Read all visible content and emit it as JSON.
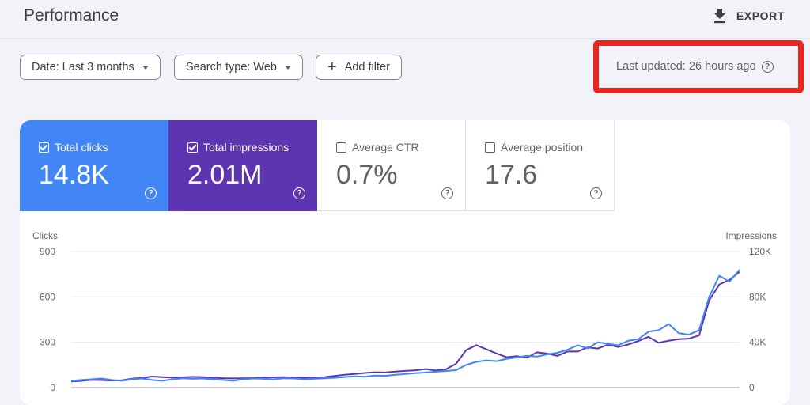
{
  "header": {
    "title": "Performance",
    "export_label": "EXPORT"
  },
  "filters": {
    "date": "Date: Last 3 months",
    "search_type": "Search type: Web",
    "add_filter": "Add filter"
  },
  "status": {
    "last_updated": "Last updated: 26 hours ago"
  },
  "metrics": {
    "clicks": {
      "label": "Total clicks",
      "value": "14.8K",
      "checked": true
    },
    "impressions": {
      "label": "Total impressions",
      "value": "2.01M",
      "checked": true
    },
    "ctr": {
      "label": "Average CTR",
      "value": "0.7%",
      "checked": false
    },
    "position": {
      "label": "Average position",
      "value": "17.6",
      "checked": false
    }
  },
  "colors": {
    "clicks": "#4285f4",
    "impressions": "#5e35b1",
    "highlight": "#e8261c"
  },
  "chart_data": {
    "type": "line",
    "left_axis_label": "Clicks",
    "right_axis_label": "Impressions",
    "left_ticks": [
      "900",
      "600",
      "300",
      "0"
    ],
    "right_ticks": [
      "120K",
      "80K",
      "40K",
      "0"
    ],
    "left_range": [
      0,
      900
    ],
    "right_range": [
      0,
      120000
    ],
    "grid": true,
    "series": [
      {
        "name": "Total clicks",
        "axis": "left",
        "color": "#4285f4",
        "values": [
          45,
          50,
          55,
          60,
          50,
          45,
          55,
          60,
          50,
          45,
          55,
          62,
          58,
          60,
          55,
          50,
          45,
          55,
          60,
          58,
          55,
          62,
          60,
          55,
          58,
          62,
          65,
          70,
          75,
          72,
          80,
          78,
          85,
          90,
          95,
          100,
          105,
          110,
          115,
          150,
          170,
          180,
          175,
          190,
          200,
          210,
          205,
          220,
          230,
          250,
          280,
          260,
          300,
          290,
          280,
          310,
          320,
          370,
          380,
          420,
          360,
          350,
          380,
          600,
          740,
          700,
          780
        ]
      },
      {
        "name": "Total impressions",
        "axis": "right",
        "color": "#5e35b1",
        "values": [
          5400,
          5900,
          6800,
          6600,
          6200,
          6400,
          7800,
          8600,
          9800,
          9300,
          8900,
          9100,
          9500,
          9300,
          8700,
          8300,
          8100,
          8200,
          8400,
          8900,
          9100,
          9300,
          9000,
          8700,
          8900,
          9300,
          10300,
          11300,
          12100,
          12900,
          13500,
          13300,
          14100,
          14700,
          15300,
          16300,
          15100,
          16100,
          21000,
          33000,
          37500,
          33800,
          30100,
          26800,
          27700,
          26400,
          31100,
          30000,
          28000,
          31800,
          31800,
          35500,
          34500,
          37900,
          35800,
          38000,
          41100,
          44800,
          39500,
          41400,
          42700,
          43200,
          46000,
          77000,
          91000,
          95000,
          102000
        ]
      }
    ]
  }
}
